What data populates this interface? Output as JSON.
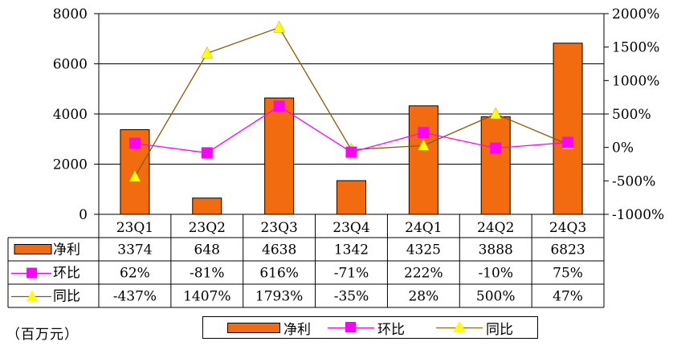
{
  "chart_data": {
    "type": "bar",
    "categories": [
      "23Q1",
      "23Q2",
      "23Q3",
      "23Q4",
      "24Q1",
      "24Q2",
      "24Q3"
    ],
    "series": [
      {
        "name": "净利",
        "type": "bar",
        "axis": "left",
        "color": "#f26b0f",
        "values": [
          3374,
          648,
          4638,
          1342,
          4325,
          3888,
          6823
        ],
        "labels": [
          "3374",
          "648",
          "4638",
          "1342",
          "4325",
          "3888",
          "6823"
        ]
      },
      {
        "name": "环比",
        "type": "line",
        "axis": "right",
        "color": "#ff00ff",
        "marker": "square",
        "values": [
          62,
          -81,
          616,
          -71,
          222,
          -10,
          75
        ],
        "labels": [
          "62%",
          "-81%",
          "616%",
          "-71%",
          "222%",
          "-10%",
          "75%"
        ]
      },
      {
        "name": "同比",
        "type": "line",
        "axis": "right",
        "color": "#8b5a00",
        "marker": "triangle",
        "marker_color": "#ffff00",
        "values": [
          -437,
          1407,
          1793,
          -35,
          28,
          500,
          47
        ],
        "labels": [
          "-437%",
          "1407%",
          "1793%",
          "-35%",
          "28%",
          "500%",
          "47%"
        ]
      }
    ],
    "left_axis": {
      "min": 0,
      "max": 8000,
      "ticks": [
        "0",
        "2000",
        "4000",
        "6000",
        "8000"
      ]
    },
    "right_axis": {
      "min": -1000,
      "max": 2000,
      "ticks": [
        "-1000%",
        "-500%",
        "0%",
        "500%",
        "1000%",
        "1500%",
        "2000%"
      ]
    },
    "grid": "horizontal",
    "legend": "bottom"
  },
  "unit_label": "（百万元）"
}
